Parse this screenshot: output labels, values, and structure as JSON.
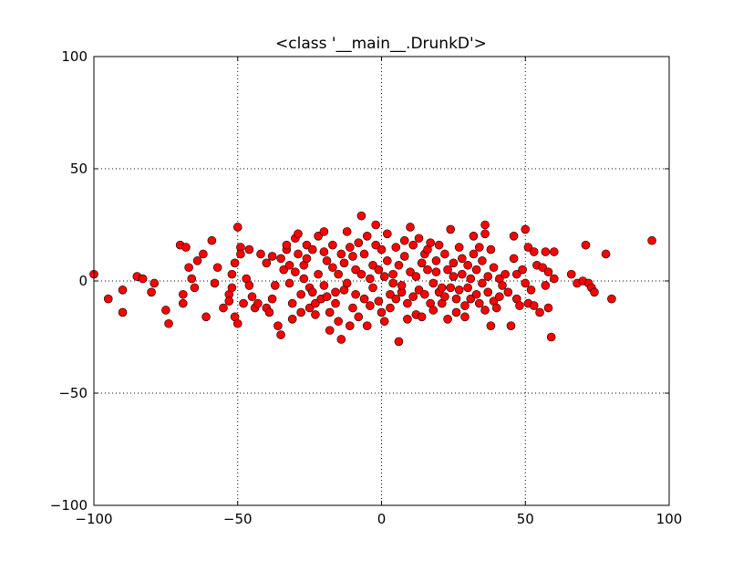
{
  "chart_data": {
    "type": "scatter",
    "title": "<class '__main__.DrunkD'>",
    "xlabel": "",
    "ylabel": "",
    "xlim": [
      -100,
      100
    ],
    "ylim": [
      -100,
      100
    ],
    "grid": true,
    "x_ticks": [
      -100,
      -50,
      0,
      50,
      100
    ],
    "y_ticks": [
      -100,
      -50,
      0,
      50,
      100
    ],
    "x_tick_labels": [
      "−100",
      "−50",
      "0",
      "50",
      "100"
    ],
    "y_tick_labels": [
      "−100",
      "−50",
      "0",
      "50",
      "100"
    ],
    "marker_color": "#ff0000",
    "points": [
      [
        -100,
        3
      ],
      [
        -95,
        -8
      ],
      [
        -90,
        -4
      ],
      [
        -90,
        -14
      ],
      [
        -85,
        2
      ],
      [
        -83,
        1
      ],
      [
        -80,
        -5
      ],
      [
        -79,
        -1
      ],
      [
        -75,
        -13
      ],
      [
        -74,
        -19
      ],
      [
        -70,
        16
      ],
      [
        -69,
        -6
      ],
      [
        -69,
        -10
      ],
      [
        -68,
        15
      ],
      [
        -67,
        6
      ],
      [
        -66,
        1
      ],
      [
        -65,
        -3
      ],
      [
        -64,
        9
      ],
      [
        -62,
        12
      ],
      [
        -61,
        -16
      ],
      [
        -59,
        18
      ],
      [
        -58,
        -1
      ],
      [
        -57,
        6
      ],
      [
        -55,
        -12
      ],
      [
        -53,
        -6
      ],
      [
        -53,
        -9
      ],
      [
        -52,
        -3
      ],
      [
        -52,
        3
      ],
      [
        -51,
        8
      ],
      [
        -51,
        -16
      ],
      [
        -50,
        24
      ],
      [
        -50,
        -19
      ],
      [
        -49,
        15
      ],
      [
        -49,
        12
      ],
      [
        -48,
        -10
      ],
      [
        -47,
        1
      ],
      [
        -46,
        -2
      ],
      [
        -46,
        14
      ],
      [
        -45,
        -7
      ],
      [
        -44,
        -12
      ],
      [
        -43,
        -10
      ],
      [
        -42,
        12
      ],
      [
        -40,
        8
      ],
      [
        -40,
        -12
      ],
      [
        -39,
        -14
      ],
      [
        -38,
        -8
      ],
      [
        -38,
        11
      ],
      [
        -37,
        -2
      ],
      [
        -36,
        -20
      ],
      [
        -35,
        10
      ],
      [
        -35,
        -24
      ],
      [
        -34,
        5
      ],
      [
        -33,
        14
      ],
      [
        -33,
        16
      ],
      [
        -32,
        -1
      ],
      [
        -32,
        7
      ],
      [
        -31,
        -10
      ],
      [
        -31,
        -17
      ],
      [
        -30,
        4
      ],
      [
        -30,
        19
      ],
      [
        -29,
        21
      ],
      [
        -29,
        12
      ],
      [
        -28,
        -6
      ],
      [
        -28,
        -14
      ],
      [
        -27,
        1
      ],
      [
        -27,
        7
      ],
      [
        -26,
        10
      ],
      [
        -26,
        16
      ],
      [
        -25,
        -3
      ],
      [
        -25,
        -12
      ],
      [
        -24,
        14
      ],
      [
        -24,
        -5
      ],
      [
        -23,
        -10
      ],
      [
        -23,
        -15
      ],
      [
        -22,
        3
      ],
      [
        -22,
        20
      ],
      [
        -21,
        -8
      ],
      [
        -20,
        22
      ],
      [
        -20,
        13
      ],
      [
        -20,
        -2
      ],
      [
        -19,
        9
      ],
      [
        -19,
        -7
      ],
      [
        -18,
        -14
      ],
      [
        -18,
        -22
      ],
      [
        -17,
        16
      ],
      [
        -17,
        6
      ],
      [
        -16,
        -5
      ],
      [
        -16,
        -10
      ],
      [
        -15,
        3
      ],
      [
        -15,
        -18
      ],
      [
        -14,
        12
      ],
      [
        -14,
        -26
      ],
      [
        -13,
        8
      ],
      [
        -13,
        -4
      ],
      [
        -12,
        22
      ],
      [
        -12,
        -1
      ],
      [
        -11,
        -20
      ],
      [
        -11,
        15
      ],
      [
        -10,
        11
      ],
      [
        -10,
        -12
      ],
      [
        -9,
        5
      ],
      [
        -9,
        -6
      ],
      [
        -8,
        17
      ],
      [
        -8,
        -16
      ],
      [
        -7,
        3
      ],
      [
        -7,
        29
      ],
      [
        -6,
        -8
      ],
      [
        -6,
        12
      ],
      [
        -5,
        -20
      ],
      [
        -5,
        20
      ],
      [
        -4,
        1
      ],
      [
        -4,
        -11
      ],
      [
        -3,
        7
      ],
      [
        -3,
        -3
      ],
      [
        -2,
        16
      ],
      [
        -2,
        25
      ],
      [
        -1,
        -9
      ],
      [
        -1,
        5
      ],
      [
        0,
        -14
      ],
      [
        0,
        14
      ],
      [
        1,
        2
      ],
      [
        1,
        -18
      ],
      [
        2,
        9
      ],
      [
        2,
        21
      ],
      [
        3,
        -6
      ],
      [
        3,
        -12
      ],
      [
        4,
        3
      ],
      [
        4,
        -1
      ],
      [
        5,
        15
      ],
      [
        5,
        -8
      ],
      [
        6,
        -27
      ],
      [
        6,
        7
      ],
      [
        7,
        -5
      ],
      [
        7,
        -2
      ],
      [
        8,
        18
      ],
      [
        8,
        11
      ],
      [
        9,
        -10
      ],
      [
        9,
        -17
      ],
      [
        10,
        24
      ],
      [
        10,
        4
      ],
      [
        11,
        -7
      ],
      [
        11,
        16
      ],
      [
        12,
        2
      ],
      [
        12,
        -15
      ],
      [
        13,
        19
      ],
      [
        13,
        -4
      ],
      [
        14,
        8
      ],
      [
        14,
        -16
      ],
      [
        15,
        -6
      ],
      [
        15,
        12
      ],
      [
        16,
        5
      ],
      [
        16,
        14
      ],
      [
        17,
        -10
      ],
      [
        17,
        17
      ],
      [
        18,
        -1
      ],
      [
        18,
        -13
      ],
      [
        19,
        9
      ],
      [
        19,
        4
      ],
      [
        20,
        -5
      ],
      [
        20,
        16
      ],
      [
        21,
        -3
      ],
      [
        21,
        -10
      ],
      [
        22,
        -7
      ],
      [
        22,
        12
      ],
      [
        23,
        5
      ],
      [
        23,
        -17
      ],
      [
        24,
        -3
      ],
      [
        24,
        23
      ],
      [
        25,
        8
      ],
      [
        25,
        2
      ],
      [
        26,
        -8
      ],
      [
        26,
        -14
      ],
      [
        27,
        15
      ],
      [
        27,
        -4
      ],
      [
        28,
        3
      ],
      [
        28,
        10
      ],
      [
        29,
        -11
      ],
      [
        29,
        -16
      ],
      [
        30,
        7
      ],
      [
        30,
        -3
      ],
      [
        31,
        1
      ],
      [
        31,
        -8
      ],
      [
        32,
        20
      ],
      [
        32,
        12
      ],
      [
        33,
        -6
      ],
      [
        33,
        5
      ],
      [
        34,
        -10
      ],
      [
        34,
        15
      ],
      [
        35,
        -1
      ],
      [
        35,
        9
      ],
      [
        36,
        21
      ],
      [
        36,
        25
      ],
      [
        36,
        -13
      ],
      [
        37,
        -5
      ],
      [
        37,
        2
      ],
      [
        38,
        14
      ],
      [
        38,
        -20
      ],
      [
        39,
        -9
      ],
      [
        39,
        6
      ],
      [
        40,
        -12
      ],
      [
        41,
        1
      ],
      [
        41,
        -7
      ],
      [
        42,
        -2
      ],
      [
        43,
        3
      ],
      [
        44,
        -5
      ],
      [
        45,
        -20
      ],
      [
        46,
        20
      ],
      [
        46,
        10
      ],
      [
        47,
        3
      ],
      [
        47,
        -8
      ],
      [
        48,
        -11
      ],
      [
        49,
        5
      ],
      [
        50,
        23
      ],
      [
        50,
        -1
      ],
      [
        51,
        15
      ],
      [
        51,
        -10
      ],
      [
        52,
        -4
      ],
      [
        53,
        13
      ],
      [
        53,
        -11
      ],
      [
        54,
        7
      ],
      [
        55,
        -14
      ],
      [
        56,
        6
      ],
      [
        57,
        13
      ],
      [
        57,
        -2
      ],
      [
        58,
        4
      ],
      [
        58,
        -12
      ],
      [
        59,
        -25
      ],
      [
        60,
        13
      ],
      [
        60,
        1
      ],
      [
        66,
        3
      ],
      [
        68,
        -1
      ],
      [
        70,
        0
      ],
      [
        71,
        16
      ],
      [
        72,
        -1
      ],
      [
        73,
        -3
      ],
      [
        74,
        -5
      ],
      [
        78,
        12
      ],
      [
        80,
        -8
      ],
      [
        94,
        18
      ]
    ]
  }
}
